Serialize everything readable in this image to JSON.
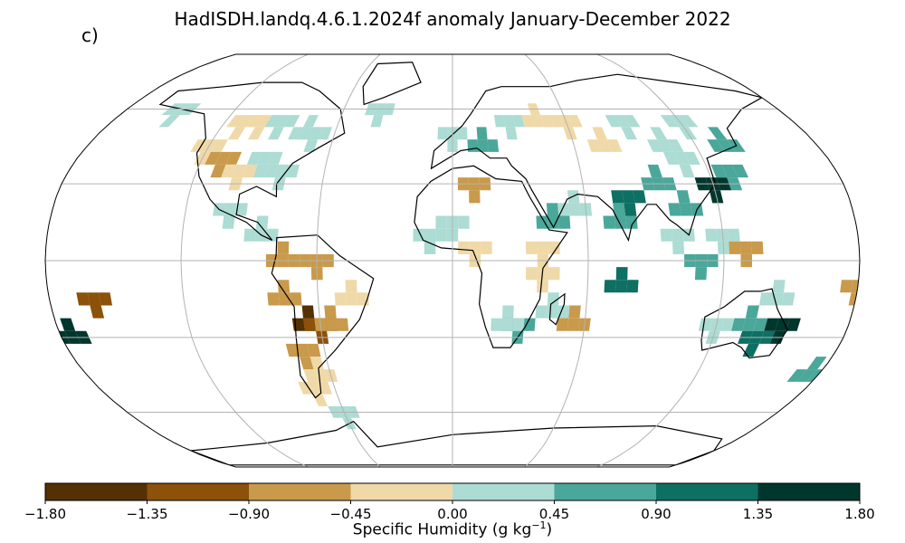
{
  "title": "HadISDH.landq.4.6.1.2024f anomaly January-December 2022",
  "panel_label": "c)",
  "colorbar": {
    "label_main": "Specific Humidity (g kg",
    "label_sup": "−1",
    "label_close": ")",
    "ticks": [
      "−1.80",
      "−1.35",
      "−0.90",
      "−0.45",
      "0.00",
      "0.45",
      "0.90",
      "1.35",
      "1.80"
    ],
    "colors": [
      "#543005",
      "#8c510a",
      "#c99a4b",
      "#efd9a8",
      "#acdcd4",
      "#4aa79a",
      "#0e6f63",
      "#01362d"
    ]
  },
  "chart_data": {
    "type": "heatmap",
    "projection": "robinson",
    "units": "g kg-1",
    "levels": [
      -1.8,
      -1.35,
      -0.9,
      -0.45,
      0.0,
      0.45,
      0.9,
      1.35,
      1.8
    ],
    "gridline_lons": [
      -120,
      -60,
      0,
      60,
      120
    ],
    "gridline_lats": [
      -60,
      -30,
      0,
      30,
      60
    ],
    "cells": [
      {
        "lon": -110,
        "lat": 57,
        "v": -0.2
      },
      {
        "lon": -100,
        "lat": 57,
        "v": -0.2
      },
      {
        "lon": -90,
        "lat": 57,
        "v": 0.2
      },
      {
        "lon": -75,
        "lat": 57,
        "v": 0.3
      },
      {
        "lon": -120,
        "lat": 47,
        "v": -0.3
      },
      {
        "lon": -110,
        "lat": 42,
        "v": -0.6
      },
      {
        "lon": -100,
        "lat": 37,
        "v": -0.3
      },
      {
        "lon": -90,
        "lat": 40,
        "v": 0.2
      },
      {
        "lon": -80,
        "lat": 37,
        "v": 0.2
      },
      {
        "lon": -70,
        "lat": 50,
        "v": 0.3
      },
      {
        "lon": -100,
        "lat": 22,
        "v": 0.2
      },
      {
        "lon": -85,
        "lat": 15,
        "v": 0.3
      },
      {
        "lon": -75,
        "lat": 5,
        "v": -0.5
      },
      {
        "lon": -60,
        "lat": 0,
        "v": -0.5
      },
      {
        "lon": -75,
        "lat": -10,
        "v": -0.9
      },
      {
        "lon": -65,
        "lat": -20,
        "v": -1.6
      },
      {
        "lon": -60,
        "lat": -25,
        "v": -1.1
      },
      {
        "lon": -55,
        "lat": -20,
        "v": -0.7
      },
      {
        "lon": -45,
        "lat": -10,
        "v": -0.4
      },
      {
        "lon": -68,
        "lat": -33,
        "v": -0.9
      },
      {
        "lon": -65,
        "lat": -40,
        "v": -0.4
      },
      {
        "lon": -70,
        "lat": -48,
        "v": -0.3
      },
      {
        "lon": -150,
        "lat": 62,
        "v": 0.3
      },
      {
        "lon": -160,
        "lat": -15,
        "v": -1.0
      },
      {
        "lon": -175,
        "lat": -25,
        "v": 1.6
      },
      {
        "lon": 0,
        "lat": 50,
        "v": 0.3
      },
      {
        "lon": 15,
        "lat": 50,
        "v": 0.5
      },
      {
        "lon": 30,
        "lat": 55,
        "v": 0.4
      },
      {
        "lon": 45,
        "lat": 58,
        "v": -0.2
      },
      {
        "lon": 60,
        "lat": 55,
        "v": -0.3
      },
      {
        "lon": 75,
        "lat": 52,
        "v": -0.3
      },
      {
        "lon": 90,
        "lat": 55,
        "v": 0.3
      },
      {
        "lon": 105,
        "lat": 52,
        "v": 0.3
      },
      {
        "lon": 120,
        "lat": 55,
        "v": 0.2
      },
      {
        "lon": 135,
        "lat": 50,
        "v": 0.5
      },
      {
        "lon": 110,
        "lat": 40,
        "v": 0.3
      },
      {
        "lon": 95,
        "lat": 35,
        "v": 0.5
      },
      {
        "lon": 80,
        "lat": 25,
        "v": 1.0
      },
      {
        "lon": 75,
        "lat": 18,
        "v": 0.6
      },
      {
        "lon": 105,
        "lat": 25,
        "v": 0.7
      },
      {
        "lon": 120,
        "lat": 30,
        "v": 1.4
      },
      {
        "lon": 130,
        "lat": 35,
        "v": 0.6
      },
      {
        "lon": 100,
        "lat": 12,
        "v": 0.3
      },
      {
        "lon": 120,
        "lat": 12,
        "v": 0.4
      },
      {
        "lon": 110,
        "lat": 0,
        "v": 0.5
      },
      {
        "lon": 130,
        "lat": 5,
        "v": -0.6
      },
      {
        "lon": 55,
        "lat": 25,
        "v": 0.2
      },
      {
        "lon": 45,
        "lat": 20,
        "v": 0.6
      },
      {
        "lon": 10,
        "lat": 30,
        "v": -0.7
      },
      {
        "lon": 0,
        "lat": 15,
        "v": 0.2
      },
      {
        "lon": -10,
        "lat": 10,
        "v": 0.3
      },
      {
        "lon": 10,
        "lat": 5,
        "v": -0.3
      },
      {
        "lon": 40,
        "lat": 5,
        "v": -0.4
      },
      {
        "lon": 40,
        "lat": -5,
        "v": -0.4
      },
      {
        "lon": 30,
        "lat": -25,
        "v": 0.6
      },
      {
        "lon": 25,
        "lat": -20,
        "v": 0.3
      },
      {
        "lon": 45,
        "lat": -15,
        "v": 0.3
      },
      {
        "lon": 55,
        "lat": -20,
        "v": -0.7
      },
      {
        "lon": 75,
        "lat": -5,
        "v": 1.0
      },
      {
        "lon": 120,
        "lat": -25,
        "v": 0.3
      },
      {
        "lon": 135,
        "lat": -20,
        "v": 0.6
      },
      {
        "lon": 140,
        "lat": -30,
        "v": 1.0
      },
      {
        "lon": 150,
        "lat": -25,
        "v": 1.4
      },
      {
        "lon": 145,
        "lat": -10,
        "v": 0.4
      },
      {
        "lon": 175,
        "lat": -40,
        "v": 0.8
      },
      {
        "lon": 178,
        "lat": -10,
        "v": -0.9
      },
      {
        "lon": -40,
        "lat": 62,
        "v": 0.2
      },
      {
        "lon": -60,
        "lat": -60,
        "v": 0.2
      }
    ]
  }
}
